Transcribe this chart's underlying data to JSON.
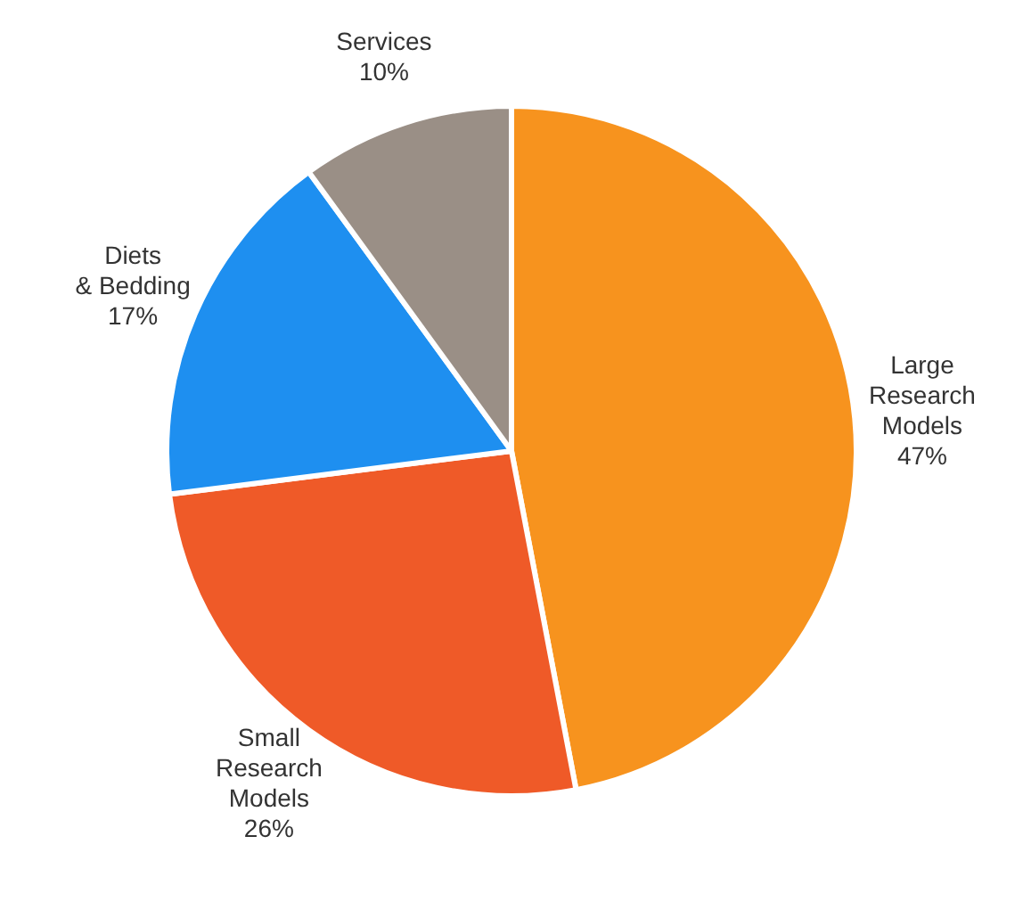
{
  "chart_data": {
    "type": "pie",
    "categories": [
      "Large Research Models",
      "Small Research Models",
      "Diets & Bedding",
      "Services"
    ],
    "values": [
      47,
      26,
      17,
      10
    ],
    "colors": [
      "#f7931e",
      "#ef5a28",
      "#1e8ff0",
      "#9a8f86"
    ],
    "value_labels": [
      "47%",
      "26%",
      "17%",
      "10%"
    ],
    "legend": false
  }
}
